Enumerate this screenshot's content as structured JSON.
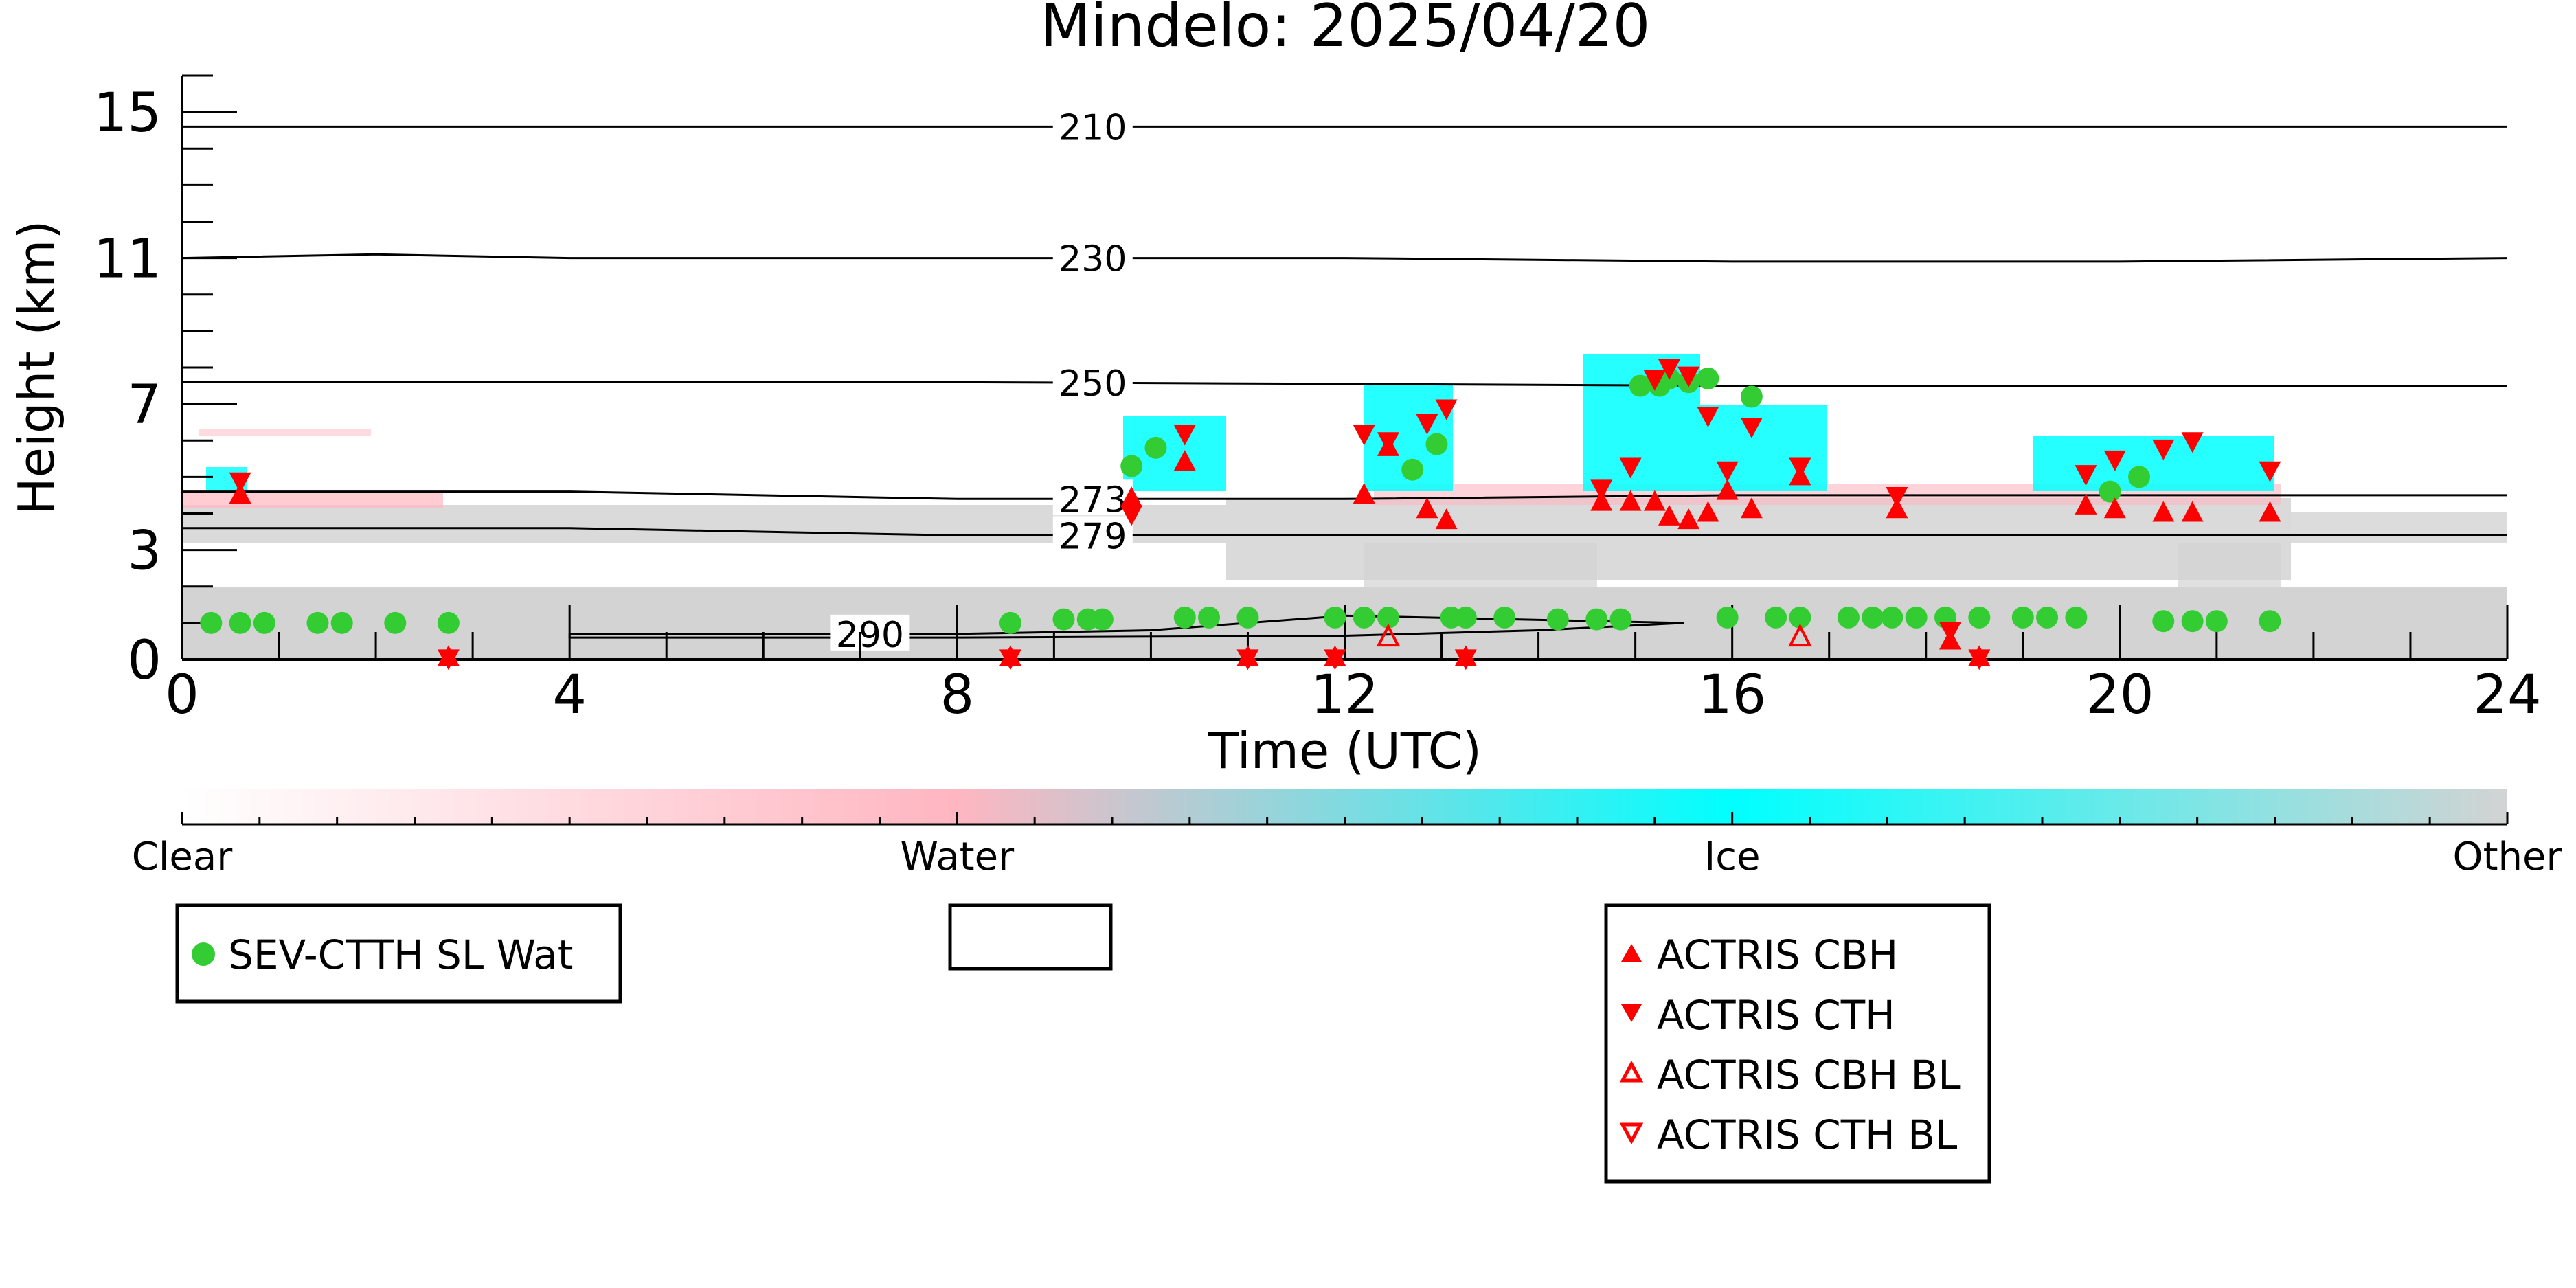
{
  "chart_data": {
    "type": "scatter",
    "title": "Mindelo: 2025/04/20",
    "xlabel": "Time (UTC)",
    "ylabel": "Height (km)",
    "xlim": [
      0,
      24
    ],
    "ylim": [
      0,
      16
    ],
    "x_ticks": [
      0,
      4,
      8,
      12,
      16,
      20,
      24
    ],
    "y_ticks": [
      0,
      3,
      7,
      11,
      15
    ],
    "colorbar": {
      "labels": [
        "Clear",
        "Water",
        "Ice",
        "Other"
      ],
      "colors": [
        "#ffffff",
        "#ffb6c1",
        "#00ffff",
        "#d3d3d3"
      ]
    },
    "contours": [
      {
        "label": "210",
        "points": [
          [
            0,
            14.6
          ],
          [
            4,
            14.6
          ],
          [
            8,
            14.6
          ],
          [
            12,
            14.6
          ],
          [
            16,
            14.6
          ],
          [
            20,
            14.6
          ],
          [
            24,
            14.6
          ]
        ]
      },
      {
        "label": "230",
        "points": [
          [
            0,
            11.0
          ],
          [
            2,
            11.1
          ],
          [
            4,
            11.0
          ],
          [
            8,
            11.0
          ],
          [
            12,
            11.0
          ],
          [
            16,
            10.9
          ],
          [
            20,
            10.9
          ],
          [
            24,
            11.0
          ]
        ]
      },
      {
        "label": "250",
        "points": [
          [
            0,
            7.6
          ],
          [
            4,
            7.6
          ],
          [
            8,
            7.6
          ],
          [
            12,
            7.55
          ],
          [
            16,
            7.5
          ],
          [
            20,
            7.5
          ],
          [
            24,
            7.5
          ]
        ]
      },
      {
        "label": "273",
        "points": [
          [
            0,
            4.6
          ],
          [
            4,
            4.6
          ],
          [
            8,
            4.4
          ],
          [
            10,
            4.4
          ],
          [
            12,
            4.4
          ],
          [
            16,
            4.5
          ],
          [
            20,
            4.5
          ],
          [
            24,
            4.5
          ]
        ]
      },
      {
        "label": "279",
        "points": [
          [
            0,
            3.6
          ],
          [
            4,
            3.6
          ],
          [
            8,
            3.4
          ],
          [
            12,
            3.4
          ],
          [
            16,
            3.4
          ],
          [
            20,
            3.4
          ],
          [
            24,
            3.4
          ]
        ]
      },
      {
        "label": "290",
        "points": [
          [
            4,
            0.7
          ],
          [
            8,
            0.7
          ],
          [
            10,
            0.8
          ],
          [
            12,
            1.2
          ],
          [
            15.5,
            1.0
          ],
          [
            14,
            0.8
          ],
          [
            12,
            0.65
          ],
          [
            8,
            0.6
          ],
          [
            4,
            0.6
          ],
          [
            4,
            0.7
          ]
        ]
      }
    ],
    "series": [
      {
        "name": "SEV-CTTH SL Wat",
        "color": "#33cc33",
        "marker": "circle",
        "points": [
          [
            0.3,
            1.0
          ],
          [
            0.6,
            1.0
          ],
          [
            0.85,
            1.0
          ],
          [
            1.4,
            1.0
          ],
          [
            1.65,
            1.0
          ],
          [
            2.2,
            1.0
          ],
          [
            2.75,
            1.0
          ],
          [
            8.55,
            1.0
          ],
          [
            9.1,
            1.1
          ],
          [
            9.35,
            1.1
          ],
          [
            9.5,
            1.1
          ],
          [
            9.8,
            5.3
          ],
          [
            10.05,
            5.8
          ],
          [
            10.35,
            1.15
          ],
          [
            10.6,
            1.15
          ],
          [
            11.0,
            1.15
          ],
          [
            11.9,
            1.15
          ],
          [
            12.2,
            1.15
          ],
          [
            12.45,
            1.15
          ],
          [
            12.7,
            5.2
          ],
          [
            12.95,
            5.9
          ],
          [
            13.1,
            1.15
          ],
          [
            13.25,
            1.15
          ],
          [
            13.65,
            1.15
          ],
          [
            14.2,
            1.1
          ],
          [
            14.6,
            1.1
          ],
          [
            14.85,
            1.1
          ],
          [
            15.05,
            7.5
          ],
          [
            15.25,
            7.5
          ],
          [
            15.35,
            7.7
          ],
          [
            15.55,
            7.6
          ],
          [
            15.75,
            7.7
          ],
          [
            15.95,
            1.15
          ],
          [
            16.2,
            7.2
          ],
          [
            16.45,
            1.15
          ],
          [
            16.7,
            1.15
          ],
          [
            17.2,
            1.15
          ],
          [
            17.45,
            1.15
          ],
          [
            17.65,
            1.15
          ],
          [
            17.9,
            1.15
          ],
          [
            18.2,
            1.15
          ],
          [
            18.55,
            1.15
          ],
          [
            19.0,
            1.15
          ],
          [
            19.25,
            1.15
          ],
          [
            19.55,
            1.15
          ],
          [
            19.9,
            4.6
          ],
          [
            20.2,
            5.0
          ],
          [
            20.45,
            1.05
          ],
          [
            20.75,
            1.05
          ],
          [
            21.0,
            1.05
          ],
          [
            21.55,
            1.05
          ]
        ]
      },
      {
        "name": "ACTRIS CBH",
        "color": "#ff0000",
        "marker": "triangle-up",
        "points": [
          [
            0.6,
            4.5
          ],
          [
            2.75,
            0.05
          ],
          [
            8.55,
            0.05
          ],
          [
            9.8,
            4.4
          ],
          [
            10.35,
            5.4
          ],
          [
            11.0,
            0.05
          ],
          [
            11.9,
            0.05
          ],
          [
            12.2,
            4.5
          ],
          [
            12.45,
            5.8
          ],
          [
            12.85,
            4.1
          ],
          [
            13.05,
            3.8
          ],
          [
            13.25,
            0.05
          ],
          [
            14.65,
            4.3
          ],
          [
            14.95,
            4.3
          ],
          [
            15.2,
            4.3
          ],
          [
            15.35,
            3.9
          ],
          [
            15.55,
            3.8
          ],
          [
            15.75,
            4.0
          ],
          [
            15.95,
            4.6
          ],
          [
            16.2,
            4.1
          ],
          [
            16.7,
            5.0
          ],
          [
            17.7,
            4.1
          ],
          [
            18.25,
            0.5
          ],
          [
            18.55,
            0.05
          ],
          [
            19.65,
            4.2
          ],
          [
            19.95,
            4.1
          ],
          [
            20.45,
            4.0
          ],
          [
            20.75,
            4.0
          ],
          [
            21.55,
            4.0
          ]
        ]
      },
      {
        "name": "ACTRIS CTH",
        "color": "#ff0000",
        "marker": "triangle-down",
        "points": [
          [
            0.6,
            4.9
          ],
          [
            2.75,
            0.05
          ],
          [
            8.55,
            0.05
          ],
          [
            9.8,
            4.0
          ],
          [
            10.35,
            6.2
          ],
          [
            11.0,
            0.05
          ],
          [
            11.9,
            0.05
          ],
          [
            12.2,
            6.2
          ],
          [
            12.45,
            6.0
          ],
          [
            12.85,
            6.5
          ],
          [
            13.05,
            6.9
          ],
          [
            13.25,
            0.05
          ],
          [
            14.65,
            4.7
          ],
          [
            14.95,
            5.3
          ],
          [
            15.2,
            7.7
          ],
          [
            15.35,
            8.0
          ],
          [
            15.55,
            7.8
          ],
          [
            15.75,
            6.7
          ],
          [
            15.95,
            5.2
          ],
          [
            16.2,
            6.4
          ],
          [
            16.7,
            5.3
          ],
          [
            17.7,
            4.5
          ],
          [
            18.25,
            0.8
          ],
          [
            18.55,
            0.05
          ],
          [
            19.65,
            5.1
          ],
          [
            19.95,
            5.5
          ],
          [
            20.45,
            5.8
          ],
          [
            20.75,
            6.0
          ],
          [
            21.55,
            5.2
          ]
        ]
      },
      {
        "name": "ACTRIS CBH BL",
        "color": "#ff0000",
        "marker": "triangle-up-open",
        "points": [
          [
            12.45,
            0.6
          ],
          [
            16.7,
            0.6
          ]
        ]
      },
      {
        "name": "ACTRIS CTH BL",
        "color": "#ff0000",
        "marker": "triangle-down-open",
        "points": []
      }
    ],
    "legends": [
      {
        "entries": [
          "SEV-CTTH SL Wat"
        ],
        "position": "lower-left"
      },
      {
        "entries": [],
        "position": "lower-center"
      },
      {
        "entries": [
          "ACTRIS CBH",
          "ACTRIS CTH",
          "ACTRIS CBH BL",
          "ACTRIS CTH BL"
        ],
        "position": "lower-right"
      }
    ]
  }
}
